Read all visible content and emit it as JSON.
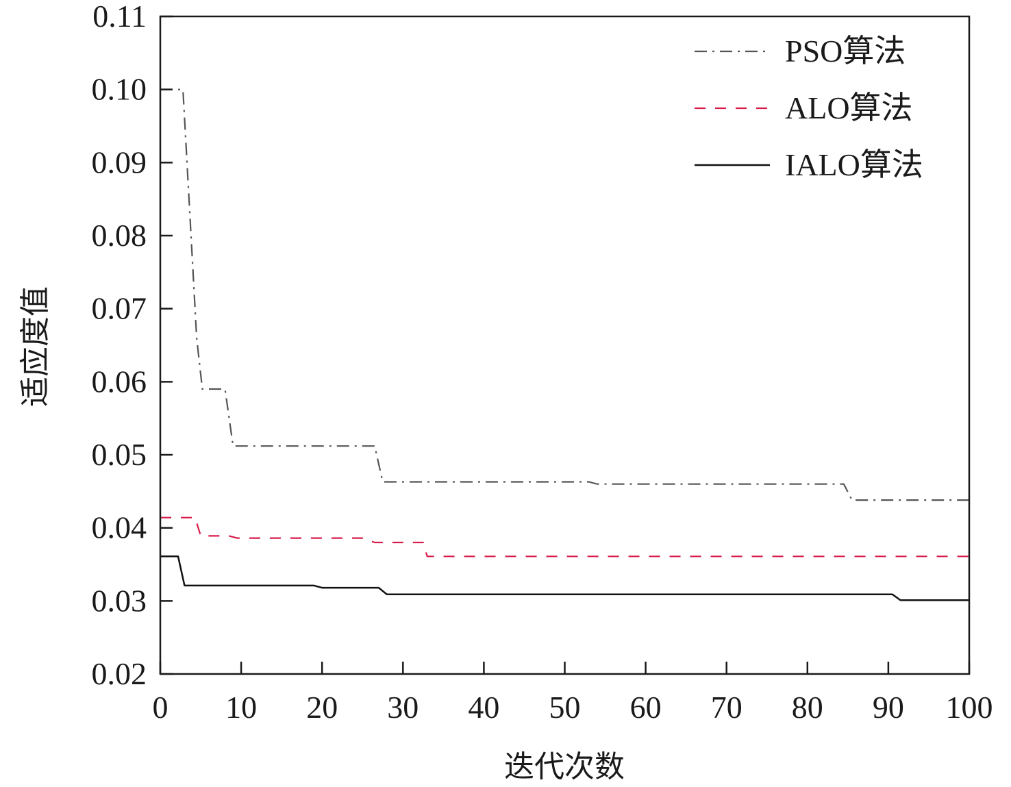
{
  "chart_data": {
    "type": "line",
    "xlabel": "迭代次数",
    "ylabel": "适应度值",
    "xlim": [
      0,
      100
    ],
    "ylim": [
      0.02,
      0.11
    ],
    "xticks": [
      0,
      10,
      20,
      30,
      40,
      50,
      60,
      70,
      80,
      90,
      100
    ],
    "xtick_labels": [
      "0",
      "10",
      "20",
      "30",
      "40",
      "50",
      "60",
      "70",
      "80",
      "90",
      "100"
    ],
    "yticks": [
      0.02,
      0.03,
      0.04,
      0.05,
      0.06,
      0.07,
      0.08,
      0.09,
      0.1,
      0.11
    ],
    "ytick_labels": [
      "0.02",
      "0.03",
      "0.04",
      "0.05",
      "0.06",
      "0.07",
      "0.08",
      "0.09",
      "0.10",
      "0.11"
    ],
    "grid": false,
    "legend_position": "top-right",
    "series": [
      {
        "name": "PSO算法",
        "style": "dash-dot",
        "color": "#555555",
        "x": [
          0,
          2.8,
          3.8,
          4.5,
          5.2,
          8,
          9,
          26.5,
          27.5,
          53,
          54,
          84.5,
          85.5,
          100
        ],
        "y": [
          0.1,
          0.1,
          0.08,
          0.066,
          0.059,
          0.059,
          0.0512,
          0.0512,
          0.0463,
          0.0463,
          0.046,
          0.046,
          0.0438,
          0.0438
        ]
      },
      {
        "name": "ALO算法",
        "style": "dashed",
        "color": "#d81b4a",
        "x": [
          0,
          4.3,
          5,
          8.5,
          9.5,
          25,
          26.5,
          32.5,
          33,
          100
        ],
        "y": [
          0.0414,
          0.0414,
          0.0389,
          0.0389,
          0.0386,
          0.0386,
          0.038,
          0.038,
          0.0361,
          0.0361
        ]
      },
      {
        "name": "IALO算法",
        "style": "solid",
        "color": "#111111",
        "x": [
          0,
          2.2,
          3,
          19,
          20,
          27,
          28,
          90.5,
          91.5,
          100
        ],
        "y": [
          0.0361,
          0.0361,
          0.0321,
          0.0321,
          0.0318,
          0.0318,
          0.0309,
          0.0309,
          0.0301,
          0.0301
        ]
      }
    ]
  }
}
